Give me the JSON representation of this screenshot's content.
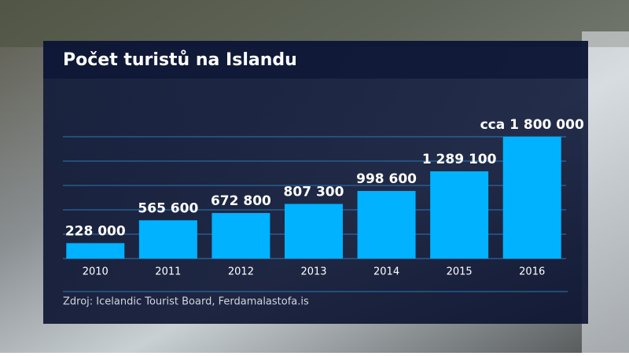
{
  "chart_data": {
    "type": "bar",
    "title": "Počet turistů na Islandu",
    "categories": [
      "2010",
      "2011",
      "2012",
      "2013",
      "2014",
      "2015",
      "2016"
    ],
    "values": [
      228000,
      565600,
      672800,
      807300,
      998600,
      1289100,
      1800000
    ],
    "value_labels": [
      "228 000",
      "565 600",
      "672 800",
      "807 300",
      "998 600",
      "1 289 100",
      "cca 1 800 000"
    ],
    "color": "#00b2ff",
    "ylim": [
      0,
      1800000
    ],
    "yticks": [
      0,
      360000,
      720000,
      1080000,
      1440000,
      1800000
    ],
    "grid": true,
    "source": "Zdroj: Icelandic Tourist Board, Ferdamalastofa.is"
  }
}
